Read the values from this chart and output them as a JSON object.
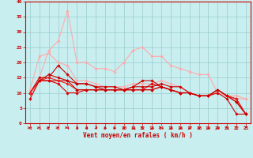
{
  "background_color": "#c8eef0",
  "grid_color": "#99cccc",
  "xlabel": "Vent moyen/en rafales ( km/h )",
  "xlabel_color": "#cc0000",
  "tick_color": "#cc0000",
  "xlim": [
    -0.5,
    23.5
  ],
  "ylim": [
    0,
    40
  ],
  "yticks": [
    0,
    5,
    10,
    15,
    20,
    25,
    30,
    35,
    40
  ],
  "xticks": [
    0,
    1,
    2,
    3,
    4,
    5,
    6,
    7,
    8,
    9,
    10,
    11,
    12,
    13,
    14,
    15,
    16,
    17,
    18,
    19,
    20,
    21,
    22,
    23
  ],
  "lines": [
    {
      "x": [
        0,
        1,
        2,
        3,
        4,
        5,
        6,
        7,
        8,
        9,
        10,
        11,
        12,
        13,
        14,
        15,
        16,
        17,
        18,
        19,
        20,
        21,
        22,
        23
      ],
      "y": [
        8,
        15,
        24,
        27,
        37,
        20,
        20,
        18,
        18,
        17,
        20,
        24,
        25,
        22,
        22,
        19,
        18,
        17,
        16,
        16,
        10,
        9,
        8,
        8
      ],
      "color": "#ffaaaa",
      "linewidth": 0.8
    },
    {
      "x": [
        0,
        1,
        2,
        3,
        4,
        5,
        6,
        7,
        8,
        9,
        10,
        11,
        12,
        13,
        14,
        15,
        16,
        17,
        18,
        19,
        20,
        21,
        22,
        23
      ],
      "y": [
        11,
        22,
        23,
        20,
        19,
        14,
        14,
        13,
        12,
        12,
        12,
        13,
        13,
        13,
        14,
        13,
        12,
        10,
        9,
        9,
        10,
        9,
        9,
        8
      ],
      "color": "#ffaaaa",
      "linewidth": 0.8
    },
    {
      "x": [
        0,
        1,
        2,
        3,
        4,
        5,
        6,
        7,
        8,
        9,
        10,
        11,
        12,
        13,
        14,
        15,
        16,
        17,
        18,
        19,
        20,
        21,
        22,
        23
      ],
      "y": [
        10,
        15,
        15,
        19,
        16,
        13,
        13,
        12,
        11,
        11,
        11,
        12,
        12,
        12,
        13,
        12,
        12,
        10,
        9,
        9,
        10,
        8,
        3,
        3
      ],
      "color": "#cc0000",
      "linewidth": 0.8
    },
    {
      "x": [
        0,
        1,
        2,
        3,
        4,
        5,
        6,
        7,
        8,
        9,
        10,
        11,
        12,
        13,
        14,
        15,
        16,
        17,
        18,
        19,
        20,
        21,
        22,
        23
      ],
      "y": [
        10,
        14,
        14,
        14,
        14,
        13,
        13,
        12,
        12,
        12,
        11,
        12,
        14,
        14,
        12,
        11,
        10,
        10,
        9,
        9,
        11,
        9,
        7,
        3
      ],
      "color": "#cc0000",
      "linewidth": 0.8
    },
    {
      "x": [
        0,
        1,
        2,
        3,
        4,
        5,
        6,
        7,
        8,
        9,
        10,
        11,
        12,
        13,
        14,
        15,
        16,
        17,
        18,
        19,
        20,
        21,
        22,
        23
      ],
      "y": [
        10,
        14,
        14,
        13,
        10,
        10,
        11,
        11,
        11,
        11,
        11,
        11,
        11,
        13,
        12,
        11,
        10,
        10,
        9,
        9,
        11,
        9,
        8,
        3
      ],
      "color": "#dd0000",
      "linewidth": 0.8
    },
    {
      "x": [
        0,
        1,
        2,
        3,
        4,
        5,
        6,
        7,
        8,
        9,
        10,
        11,
        12,
        13,
        14,
        15,
        16,
        17,
        18,
        19,
        20,
        21,
        22,
        23
      ],
      "y": [
        10,
        14,
        15,
        14,
        13,
        11,
        11,
        11,
        11,
        11,
        11,
        11,
        11,
        11,
        12,
        11,
        10,
        10,
        9,
        9,
        11,
        9,
        8,
        3
      ],
      "color": "#ee2222",
      "linewidth": 0.8
    },
    {
      "x": [
        0,
        1,
        2,
        3,
        4,
        5,
        6,
        7,
        8,
        9,
        10,
        11,
        12,
        13,
        14,
        15,
        16,
        17,
        18,
        19,
        20,
        21,
        22,
        23
      ],
      "y": [
        8,
        14,
        16,
        15,
        14,
        11,
        11,
        11,
        11,
        11,
        11,
        11,
        11,
        11,
        12,
        11,
        10,
        10,
        9,
        9,
        11,
        9,
        7,
        3
      ],
      "color": "#cc0000",
      "linewidth": 0.8
    }
  ],
  "arrow_directions": [
    0,
    0,
    0,
    0,
    30,
    45,
    45,
    45,
    45,
    45,
    60,
    60,
    70,
    45,
    30,
    45,
    45,
    45,
    60,
    60,
    60,
    70,
    80,
    90
  ],
  "arrow_color": "#cc0000"
}
